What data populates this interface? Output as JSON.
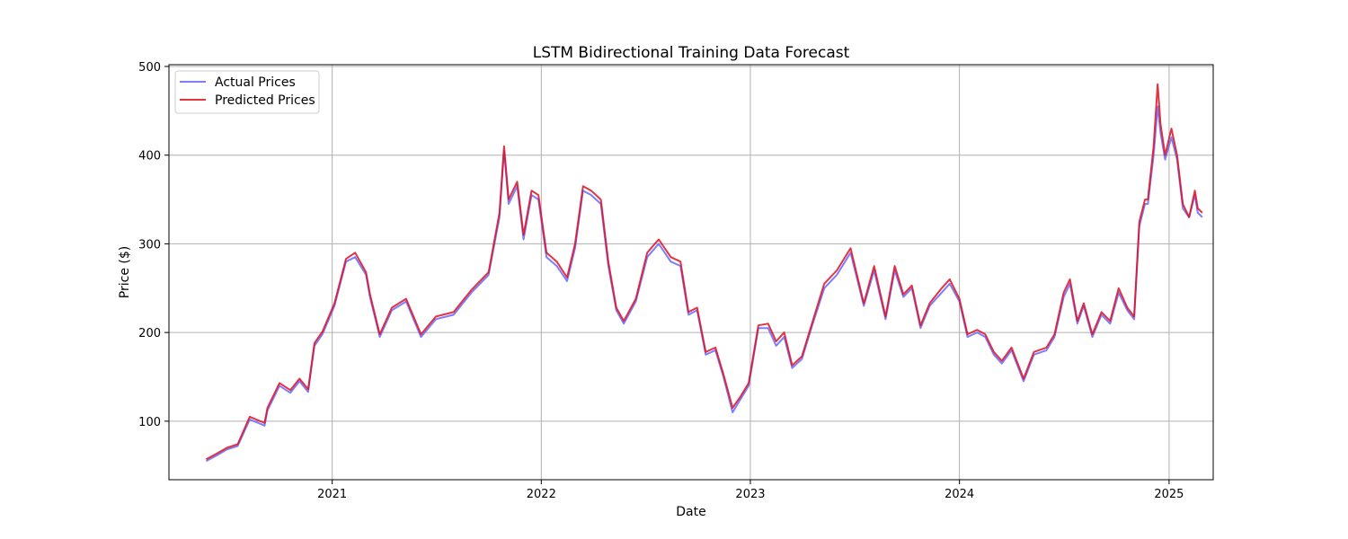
{
  "chart_data": {
    "type": "line",
    "title": "LSTM Bidirectional Training Data Forecast",
    "xlabel": "Date",
    "ylabel": "Price ($)",
    "x_tick_labels": [
      "2021",
      "2022",
      "2023",
      "2024",
      "2025"
    ],
    "y_tick_labels": [
      "100",
      "200",
      "300",
      "400",
      "500"
    ],
    "xlim": [
      "2020-03-22",
      "2025-03-19"
    ],
    "ylim": [
      34,
      502
    ],
    "grid": true,
    "legend_position": "upper-left",
    "series": [
      {
        "name": "Actual Prices",
        "color": "#6666ff",
        "x": [
          "2020-05-26",
          "2020-06-15",
          "2020-07-01",
          "2020-07-20",
          "2020-08-10",
          "2020-08-25",
          "2020-09-05",
          "2020-09-10",
          "2020-10-01",
          "2020-10-20",
          "2020-11-05",
          "2020-11-20",
          "2020-12-01",
          "2020-12-15",
          "2021-01-05",
          "2021-01-25",
          "2021-02-10",
          "2021-03-01",
          "2021-03-08",
          "2021-03-25",
          "2021-04-15",
          "2021-05-10",
          "2021-06-05",
          "2021-07-01",
          "2021-08-01",
          "2021-09-01",
          "2021-10-01",
          "2021-10-20",
          "2021-10-28",
          "2021-11-05",
          "2021-11-20",
          "2021-12-01",
          "2021-12-15",
          "2021-12-27",
          "2022-01-10",
          "2022-01-28",
          "2022-02-15",
          "2022-03-01",
          "2022-03-15",
          "2022-03-29",
          "2022-04-15",
          "2022-04-28",
          "2022-05-12",
          "2022-05-25",
          "2022-06-15",
          "2022-07-05",
          "2022-07-25",
          "2022-08-15",
          "2022-09-01",
          "2022-09-15",
          "2022-09-30",
          "2022-10-15",
          "2022-11-01",
          "2022-11-15",
          "2022-12-01",
          "2022-12-15",
          "2022-12-29",
          "2023-01-15",
          "2023-02-01",
          "2023-02-15",
          "2023-03-01",
          "2023-03-15",
          "2023-04-01",
          "2023-04-20",
          "2023-05-10",
          "2023-06-01",
          "2023-06-25",
          "2023-07-18",
          "2023-08-05",
          "2023-08-25",
          "2023-09-10",
          "2023-09-25",
          "2023-10-10",
          "2023-10-25",
          "2023-11-10",
          "2023-12-01",
          "2023-12-15",
          "2024-01-01",
          "2024-01-15",
          "2024-02-01",
          "2024-02-15",
          "2024-03-01",
          "2024-03-15",
          "2024-04-01",
          "2024-04-22",
          "2024-05-10",
          "2024-06-01",
          "2024-06-15",
          "2024-07-01",
          "2024-07-12",
          "2024-07-25",
          "2024-08-05",
          "2024-08-20",
          "2024-09-05",
          "2024-09-20",
          "2024-10-05",
          "2024-10-20",
          "2024-11-01",
          "2024-11-10",
          "2024-11-20",
          "2024-11-25",
          "2024-12-05",
          "2024-12-12",
          "2024-12-17",
          "2024-12-25",
          "2025-01-05",
          "2025-01-15",
          "2025-01-25",
          "2025-02-05",
          "2025-02-15",
          "2025-02-20",
          "2025-02-28"
        ],
        "values": [
          55,
          62,
          68,
          72,
          102,
          98,
          95,
          112,
          140,
          132,
          145,
          133,
          185,
          198,
          230,
          280,
          285,
          265,
          240,
          195,
          225,
          235,
          195,
          215,
          220,
          245,
          265,
          330,
          405,
          345,
          365,
          305,
          355,
          350,
          285,
          275,
          258,
          295,
          360,
          355,
          345,
          275,
          225,
          210,
          235,
          285,
          300,
          280,
          275,
          220,
          225,
          175,
          180,
          150,
          110,
          125,
          140,
          205,
          205,
          185,
          195,
          160,
          170,
          210,
          250,
          265,
          290,
          230,
          270,
          215,
          270,
          240,
          250,
          205,
          230,
          245,
          255,
          235,
          195,
          200,
          195,
          175,
          165,
          180,
          145,
          175,
          180,
          195,
          240,
          255,
          210,
          230,
          195,
          220,
          210,
          245,
          225,
          215,
          320,
          345,
          345,
          400,
          455,
          425,
          395,
          420,
          395,
          340,
          330,
          355,
          335,
          330
        ]
      },
      {
        "name": "Predicted Prices",
        "color": "#dd1122",
        "x": [
          "2020-05-26",
          "2020-06-15",
          "2020-07-01",
          "2020-07-20",
          "2020-08-10",
          "2020-08-25",
          "2020-09-05",
          "2020-09-10",
          "2020-10-01",
          "2020-10-20",
          "2020-11-05",
          "2020-11-20",
          "2020-12-01",
          "2020-12-15",
          "2021-01-05",
          "2021-01-25",
          "2021-02-10",
          "2021-03-01",
          "2021-03-08",
          "2021-03-25",
          "2021-04-15",
          "2021-05-10",
          "2021-06-05",
          "2021-07-01",
          "2021-08-01",
          "2021-09-01",
          "2021-10-01",
          "2021-10-20",
          "2021-10-28",
          "2021-11-05",
          "2021-11-20",
          "2021-12-01",
          "2021-12-15",
          "2021-12-27",
          "2022-01-10",
          "2022-01-28",
          "2022-02-15",
          "2022-03-01",
          "2022-03-15",
          "2022-03-29",
          "2022-04-15",
          "2022-04-28",
          "2022-05-12",
          "2022-05-25",
          "2022-06-15",
          "2022-07-05",
          "2022-07-25",
          "2022-08-15",
          "2022-09-01",
          "2022-09-15",
          "2022-09-30",
          "2022-10-15",
          "2022-11-01",
          "2022-11-15",
          "2022-12-01",
          "2022-12-15",
          "2022-12-29",
          "2023-01-15",
          "2023-02-01",
          "2023-02-15",
          "2023-03-01",
          "2023-03-15",
          "2023-04-01",
          "2023-04-20",
          "2023-05-10",
          "2023-06-01",
          "2023-06-25",
          "2023-07-18",
          "2023-08-05",
          "2023-08-25",
          "2023-09-10",
          "2023-09-25",
          "2023-10-10",
          "2023-10-25",
          "2023-11-10",
          "2023-12-01",
          "2023-12-15",
          "2024-01-01",
          "2024-01-15",
          "2024-02-01",
          "2024-02-15",
          "2024-03-01",
          "2024-03-15",
          "2024-04-01",
          "2024-04-22",
          "2024-05-10",
          "2024-06-01",
          "2024-06-15",
          "2024-07-01",
          "2024-07-12",
          "2024-07-25",
          "2024-08-05",
          "2024-08-20",
          "2024-09-05",
          "2024-09-20",
          "2024-10-05",
          "2024-10-20",
          "2024-11-01",
          "2024-11-10",
          "2024-11-20",
          "2024-11-25",
          "2024-12-05",
          "2024-12-12",
          "2024-12-17",
          "2024-12-25",
          "2025-01-05",
          "2025-01-15",
          "2025-01-25",
          "2025-02-05",
          "2025-02-15",
          "2025-02-20",
          "2025-02-28"
        ],
        "values": [
          57,
          64,
          70,
          74,
          105,
          101,
          98,
          115,
          143,
          135,
          148,
          136,
          188,
          201,
          233,
          283,
          290,
          268,
          243,
          198,
          228,
          238,
          198,
          218,
          223,
          248,
          268,
          335,
          410,
          350,
          370,
          310,
          360,
          355,
          290,
          280,
          262,
          300,
          365,
          360,
          350,
          280,
          228,
          213,
          238,
          290,
          305,
          285,
          280,
          223,
          228,
          178,
          183,
          153,
          115,
          128,
          143,
          208,
          210,
          190,
          200,
          163,
          173,
          213,
          255,
          270,
          295,
          233,
          275,
          218,
          275,
          243,
          253,
          208,
          233,
          250,
          260,
          238,
          198,
          203,
          198,
          178,
          168,
          183,
          148,
          178,
          183,
          198,
          245,
          260,
          213,
          233,
          198,
          223,
          213,
          250,
          228,
          218,
          325,
          350,
          350,
          410,
          480,
          435,
          400,
          430,
          400,
          345,
          330,
          360,
          340,
          335
        ]
      }
    ]
  }
}
